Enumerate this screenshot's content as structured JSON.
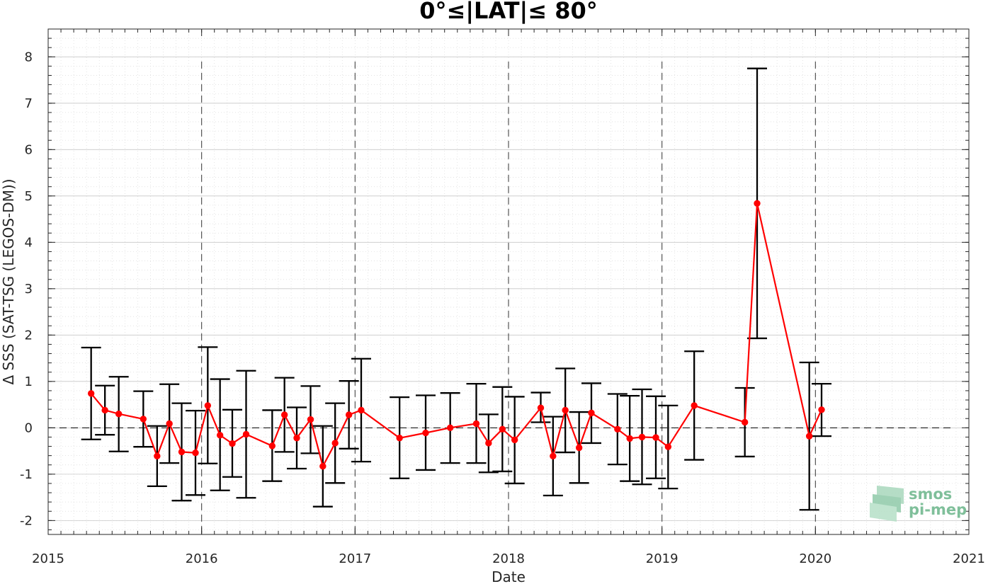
{
  "chart_data": {
    "type": "line",
    "title": "0°≤|LAT|≤ 80°",
    "xlabel": "Date",
    "ylabel": "Δ SSS (SAT-TSG (LEGOS-DM))",
    "xlim": [
      2015,
      2021
    ],
    "ylim": [
      -2.3,
      8.6
    ],
    "x_ticks": [
      "2015",
      "2016",
      "2017",
      "2018",
      "2019",
      "2020",
      "2021"
    ],
    "y_ticks": [
      "-2",
      "-1",
      "0",
      "1",
      "2",
      "3",
      "4",
      "5",
      "6",
      "7",
      "8"
    ],
    "grid": true,
    "reference_line_y": 0,
    "year_divider_lines": [
      "2016",
      "2017",
      "2018",
      "2019",
      "2020"
    ],
    "colors": {
      "series": "#ff0000",
      "error_bars": "#000000",
      "logo": "#7fbf9a"
    },
    "series": [
      {
        "points": [
          {
            "x": 2015.28,
            "y": 0.74,
            "lo": -0.25,
            "hi": 1.73
          },
          {
            "x": 2015.37,
            "y": 0.38,
            "lo": -0.15,
            "hi": 0.91
          },
          {
            "x": 2015.46,
            "y": 0.3,
            "lo": -0.51,
            "hi": 1.1
          },
          {
            "x": 2015.62,
            "y": 0.19,
            "lo": -0.41,
            "hi": 0.79
          },
          {
            "x": 2015.71,
            "y": -0.61,
            "lo": -1.26,
            "hi": 0.04
          },
          {
            "x": 2015.79,
            "y": 0.09,
            "lo": -0.76,
            "hi": 0.94
          },
          {
            "x": 2015.87,
            "y": -0.52,
            "lo": -1.57,
            "hi": 0.53
          },
          {
            "x": 2015.96,
            "y": -0.54,
            "lo": -1.45,
            "hi": 0.37
          },
          {
            "x": 2016.04,
            "y": 0.48,
            "lo": -0.77,
            "hi": 1.74
          },
          {
            "x": 2016.12,
            "y": -0.16,
            "lo": -1.35,
            "hi": 1.05
          },
          {
            "x": 2016.2,
            "y": -0.34,
            "lo": -1.06,
            "hi": 0.39
          },
          {
            "x": 2016.29,
            "y": -0.14,
            "lo": -1.51,
            "hi": 1.23
          },
          {
            "x": 2016.46,
            "y": -0.39,
            "lo": -1.15,
            "hi": 0.38
          },
          {
            "x": 2016.54,
            "y": 0.28,
            "lo": -0.52,
            "hi": 1.08
          },
          {
            "x": 2016.62,
            "y": -0.22,
            "lo": -0.88,
            "hi": 0.44
          },
          {
            "x": 2016.71,
            "y": 0.18,
            "lo": -0.55,
            "hi": 0.9
          },
          {
            "x": 2016.79,
            "y": -0.83,
            "lo": -1.7,
            "hi": 0.04
          },
          {
            "x": 2016.87,
            "y": -0.33,
            "lo": -1.19,
            "hi": 0.53
          },
          {
            "x": 2016.96,
            "y": 0.28,
            "lo": -0.45,
            "hi": 1.01
          },
          {
            "x": 2017.04,
            "y": 0.38,
            "lo": -0.73,
            "hi": 1.49
          },
          {
            "x": 2017.29,
            "y": -0.22,
            "lo": -1.09,
            "hi": 0.66
          },
          {
            "x": 2017.46,
            "y": -0.11,
            "lo": -0.91,
            "hi": 0.7
          },
          {
            "x": 2017.62,
            "y": 0.0,
            "lo": -0.76,
            "hi": 0.75
          },
          {
            "x": 2017.79,
            "y": 0.09,
            "lo": -0.76,
            "hi": 0.95
          },
          {
            "x": 2017.87,
            "y": -0.33,
            "lo": -0.96,
            "hi": 0.29
          },
          {
            "x": 2017.96,
            "y": -0.03,
            "lo": -0.94,
            "hi": 0.88
          },
          {
            "x": 2018.04,
            "y": -0.26,
            "lo": -1.2,
            "hi": 0.67
          },
          {
            "x": 2018.21,
            "y": 0.43,
            "lo": 0.12,
            "hi": 0.76
          },
          {
            "x": 2018.29,
            "y": -0.61,
            "lo": -1.46,
            "hi": 0.24
          },
          {
            "x": 2018.37,
            "y": 0.38,
            "lo": -0.53,
            "hi": 1.28
          },
          {
            "x": 2018.46,
            "y": -0.43,
            "lo": -1.19,
            "hi": 0.34
          },
          {
            "x": 2018.54,
            "y": 0.32,
            "lo": -0.33,
            "hi": 0.96
          },
          {
            "x": 2018.71,
            "y": -0.03,
            "lo": -0.79,
            "hi": 0.73
          },
          {
            "x": 2018.79,
            "y": -0.23,
            "lo": -1.15,
            "hi": 0.69
          },
          {
            "x": 2018.87,
            "y": -0.2,
            "lo": -1.22,
            "hi": 0.83
          },
          {
            "x": 2018.96,
            "y": -0.21,
            "lo": -1.09,
            "hi": 0.68
          },
          {
            "x": 2019.04,
            "y": -0.41,
            "lo": -1.31,
            "hi": 0.48
          },
          {
            "x": 2019.21,
            "y": 0.48,
            "lo": -0.69,
            "hi": 1.65
          },
          {
            "x": 2019.54,
            "y": 0.12,
            "lo": -0.62,
            "hi": 0.86
          },
          {
            "x": 2019.62,
            "y": 4.84,
            "lo": 1.93,
            "hi": 7.75
          },
          {
            "x": 2019.96,
            "y": -0.18,
            "lo": -1.77,
            "hi": 1.41
          },
          {
            "x": 2020.04,
            "y": 0.39,
            "lo": -0.18,
            "hi": 0.95
          }
        ]
      }
    ]
  },
  "logo": {
    "line1": "smos",
    "line2": "pi-mep"
  }
}
